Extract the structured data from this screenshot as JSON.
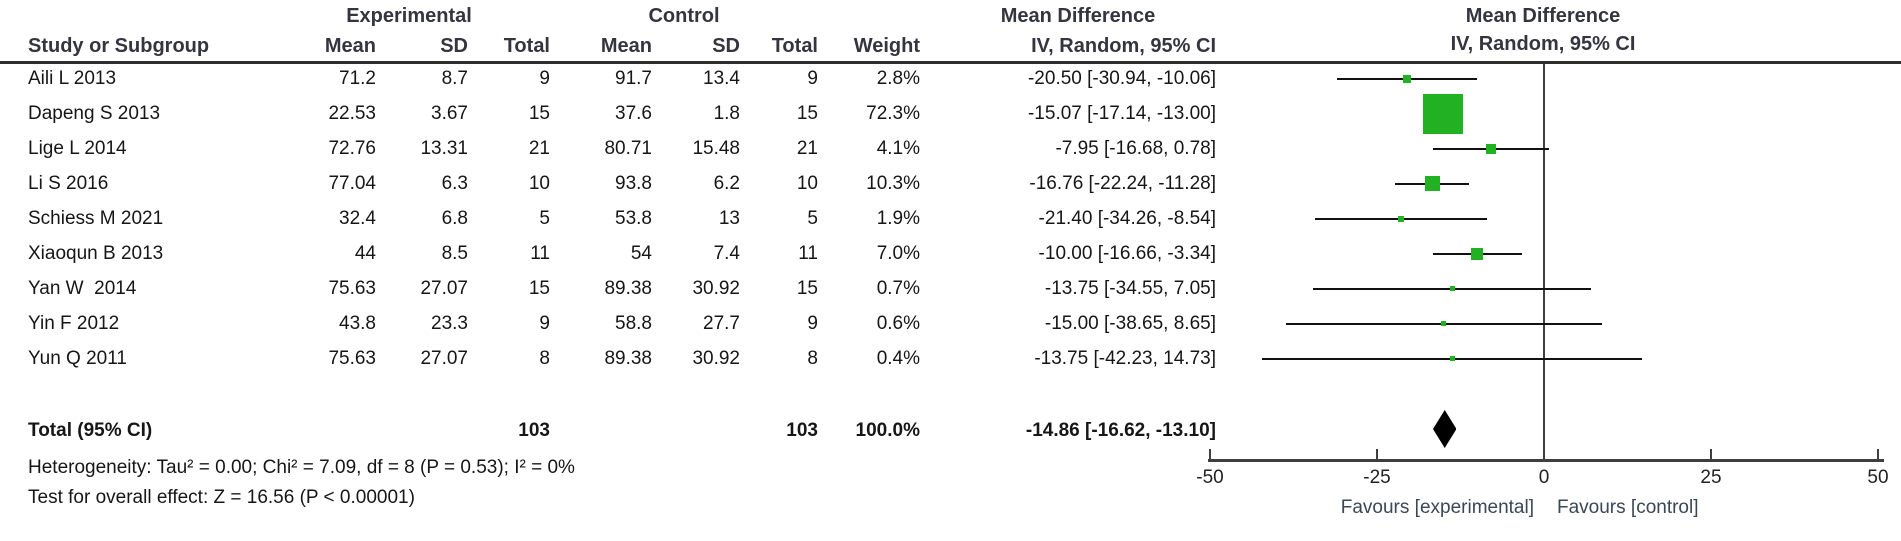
{
  "header": {
    "group_experimental": "Experimental",
    "group_control": "Control",
    "group_md_table": "Mean Difference",
    "plot_title_line1": "Mean Difference",
    "plot_title_line2": "IV, Random, 95% CI",
    "col_study": "Study or Subgroup",
    "col_exp_mean": "Mean",
    "col_exp_sd": "SD",
    "col_exp_total": "Total",
    "col_ctl_mean": "Mean",
    "col_ctl_sd": "SD",
    "col_ctl_total": "Total",
    "col_weight": "Weight",
    "col_ci": "IV, Random, 95% CI"
  },
  "chart_data": {
    "type": "forest_plot",
    "effect_measure": "Mean Difference",
    "model": "IV, Random, 95% CI",
    "studies": [
      {
        "label": "Aili L 2013",
        "exp_mean": "71.2",
        "exp_sd": "8.7",
        "exp_total": "9",
        "ctl_mean": "91.7",
        "ctl_sd": "13.4",
        "ctl_total": "9",
        "weight": "2.8%",
        "ci_text": "-20.50 [-30.94, -10.06]",
        "md": -20.5,
        "lo": -30.94,
        "hi": -10.06,
        "weight_pct": 2.8
      },
      {
        "label": "Dapeng S 2013",
        "exp_mean": "22.53",
        "exp_sd": "3.67",
        "exp_total": "15",
        "ctl_mean": "37.6",
        "ctl_sd": "1.8",
        "ctl_total": "15",
        "weight": "72.3%",
        "ci_text": "-15.07 [-17.14, -13.00]",
        "md": -15.07,
        "lo": -17.14,
        "hi": -13.0,
        "weight_pct": 72.3
      },
      {
        "label": "Lige L 2014",
        "exp_mean": "72.76",
        "exp_sd": "13.31",
        "exp_total": "21",
        "ctl_mean": "80.71",
        "ctl_sd": "15.48",
        "ctl_total": "21",
        "weight": "4.1%",
        "ci_text": "-7.95 [-16.68, 0.78]",
        "md": -7.95,
        "lo": -16.68,
        "hi": 0.78,
        "weight_pct": 4.1
      },
      {
        "label": "Li S 2016",
        "exp_mean": "77.04",
        "exp_sd": "6.3",
        "exp_total": "10",
        "ctl_mean": "93.8",
        "ctl_sd": "6.2",
        "ctl_total": "10",
        "weight": "10.3%",
        "ci_text": "-16.76 [-22.24, -11.28]",
        "md": -16.76,
        "lo": -22.24,
        "hi": -11.28,
        "weight_pct": 10.3
      },
      {
        "label": "Schiess M 2021",
        "exp_mean": "32.4",
        "exp_sd": "6.8",
        "exp_total": "5",
        "ctl_mean": "53.8",
        "ctl_sd": "13",
        "ctl_total": "5",
        "weight": "1.9%",
        "ci_text": "-21.40 [-34.26, -8.54]",
        "md": -21.4,
        "lo": -34.26,
        "hi": -8.54,
        "weight_pct": 1.9
      },
      {
        "label": "Xiaoqun B 2013",
        "exp_mean": "44",
        "exp_sd": "8.5",
        "exp_total": "11",
        "ctl_mean": "54",
        "ctl_sd": "7.4",
        "ctl_total": "11",
        "weight": "7.0%",
        "ci_text": "-10.00 [-16.66, -3.34]",
        "md": -10.0,
        "lo": -16.66,
        "hi": -3.34,
        "weight_pct": 7.0
      },
      {
        "label": "Yan W  2014",
        "exp_mean": "75.63",
        "exp_sd": "27.07",
        "exp_total": "15",
        "ctl_mean": "89.38",
        "ctl_sd": "30.92",
        "ctl_total": "15",
        "weight": "0.7%",
        "ci_text": "-13.75 [-34.55, 7.05]",
        "md": -13.75,
        "lo": -34.55,
        "hi": 7.05,
        "weight_pct": 0.7
      },
      {
        "label": "Yin F 2012",
        "exp_mean": "43.8",
        "exp_sd": "23.3",
        "exp_total": "9",
        "ctl_mean": "58.8",
        "ctl_sd": "27.7",
        "ctl_total": "9",
        "weight": "0.6%",
        "ci_text": "-15.00 [-38.65, 8.65]",
        "md": -15.0,
        "lo": -38.65,
        "hi": 8.65,
        "weight_pct": 0.6
      },
      {
        "label": "Yun Q 2011",
        "exp_mean": "75.63",
        "exp_sd": "27.07",
        "exp_total": "8",
        "ctl_mean": "89.38",
        "ctl_sd": "30.92",
        "ctl_total": "8",
        "weight": "0.4%",
        "ci_text": "-13.75 [-42.23, 14.73]",
        "md": -13.75,
        "lo": -42.23,
        "hi": 14.73,
        "weight_pct": 0.4
      }
    ],
    "total": {
      "label": "Total (95% CI)",
      "exp_total": "103",
      "ctl_total": "103",
      "weight": "100.0%",
      "ci_text": "-14.86 [-16.62, -13.10]",
      "md": -14.86,
      "lo": -16.62,
      "hi": -13.1
    },
    "heterogeneity": "Heterogeneity: Tau² = 0.00; Chi² = 7.09, df = 8 (P = 0.53); I² = 0%",
    "overall_effect": "Test for overall effect: Z = 16.56 (P < 0.00001)",
    "axis": {
      "xlim": [
        -50,
        50
      ],
      "ticks": [
        "-50",
        "-25",
        "0",
        "25",
        "50"
      ],
      "tick_values": [
        -50,
        -25,
        0,
        25,
        50
      ],
      "favours_left": "Favours [experimental]",
      "favours_right": "Favours [control]",
      "grid": false
    },
    "colors": {
      "marker_green": "#22b122",
      "diamond_black": "#000000",
      "line_black": "#111111",
      "axis_gray": "#3f3f3f"
    }
  }
}
